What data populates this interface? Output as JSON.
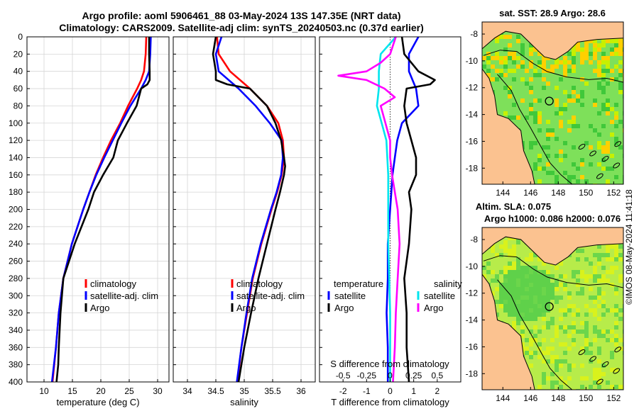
{
  "header": {
    "title_line1": "Argo profile: aoml 5906461_88 03-May-2024 13S 147.35E (NRT data)",
    "title_line2": "Climatology: CARS2009. Satellite-adj clim: synTS_20240503.nc (0.37d earlier)"
  },
  "footer": {
    "credit": "©IMOS 08-May-2024 11:41:18"
  },
  "colors": {
    "climatology": "#ff0000",
    "satellite_adj": "#0000ff",
    "argo": "#000000",
    "salinity_satellite": "#00e5ee",
    "salinity_argo": "#ff00ff"
  },
  "chart_data": [
    {
      "type": "line",
      "panel": "temperature",
      "xlabel": "temperature (deg C)",
      "ylabel": "",
      "xlim": [
        7,
        32
      ],
      "ylim": [
        400,
        0
      ],
      "xticks": [
        10,
        15,
        20,
        25,
        30
      ],
      "yticks": [
        0,
        20,
        40,
        60,
        80,
        100,
        120,
        140,
        160,
        180,
        200,
        220,
        240,
        260,
        280,
        300,
        320,
        340,
        360,
        380,
        400
      ],
      "grid": true,
      "legend": {
        "position": "bottom-right",
        "entries": [
          "climatology",
          "satellite-adj. clim",
          "Argo"
        ]
      },
      "series": [
        {
          "name": "climatology",
          "color": "#ff0000",
          "depth": [
            0,
            20,
            40,
            50,
            60,
            80,
            100,
            120,
            140,
            160,
            180,
            200,
            240,
            280,
            320,
            360,
            400
          ],
          "values": [
            28.0,
            27.9,
            27.6,
            27.1,
            26.4,
            24.8,
            23.4,
            21.8,
            20.4,
            19.1,
            18.0,
            16.9,
            14.9,
            13.4,
            12.6,
            12.1,
            11.5
          ]
        },
        {
          "name": "satellite-adj. clim",
          "color": "#0000ff",
          "depth": [
            0,
            20,
            40,
            50,
            60,
            80,
            100,
            120,
            140,
            160,
            180,
            200,
            240,
            280,
            320,
            360,
            400
          ],
          "values": [
            28.8,
            28.7,
            28.5,
            27.9,
            27.1,
            25.2,
            23.6,
            22.1,
            20.6,
            19.2,
            18.0,
            16.9,
            14.9,
            13.4,
            12.6,
            12.1,
            11.4
          ]
        },
        {
          "name": "Argo",
          "color": "#000000",
          "depth": [
            0,
            20,
            40,
            50,
            55,
            60,
            80,
            100,
            120,
            140,
            160,
            180,
            200,
            240,
            280,
            320,
            360,
            380,
            400
          ],
          "values": [
            28.5,
            28.5,
            28.6,
            28.6,
            28.2,
            27.1,
            26.3,
            24.6,
            23.0,
            22.2,
            20.4,
            18.8,
            17.8,
            15.4,
            13.4,
            12.9,
            12.6,
            12.5,
            12.2
          ]
        }
      ]
    },
    {
      "type": "line",
      "panel": "salinity",
      "xlabel": "salinity",
      "xlim": [
        33.75,
        36.25
      ],
      "ylim": [
        400,
        0
      ],
      "xticks": [
        34,
        34.5,
        35,
        35.5,
        36
      ],
      "grid": true,
      "legend": {
        "position": "bottom-right",
        "entries": [
          "climatology",
          "satellite-adj. clim",
          "Argo"
        ]
      },
      "series": [
        {
          "name": "climatology",
          "color": "#ff0000",
          "depth": [
            0,
            20,
            40,
            60,
            80,
            100,
            120,
            140,
            160,
            180,
            200,
            240,
            280,
            320,
            360,
            400
          ],
          "values": [
            34.52,
            34.55,
            34.75,
            35.1,
            35.4,
            35.6,
            35.68,
            35.7,
            35.66,
            35.58,
            35.48,
            35.3,
            35.15,
            35.05,
            34.95,
            34.88
          ]
        },
        {
          "name": "satellite-adj. clim",
          "color": "#0000ff",
          "depth": [
            0,
            20,
            40,
            60,
            80,
            100,
            120,
            140,
            160,
            180,
            200,
            240,
            280,
            320,
            360,
            400
          ],
          "values": [
            34.6,
            34.5,
            34.55,
            34.9,
            35.2,
            35.45,
            35.66,
            35.68,
            35.65,
            35.57,
            35.47,
            35.29,
            35.14,
            35.04,
            34.95,
            34.87
          ]
        },
        {
          "name": "Argo",
          "color": "#000000",
          "depth": [
            0,
            20,
            40,
            50,
            55,
            60,
            80,
            100,
            120,
            140,
            150,
            160,
            180,
            200,
            240,
            280,
            320,
            360,
            400
          ],
          "values": [
            34.5,
            34.45,
            34.5,
            34.5,
            34.7,
            35.1,
            35.4,
            35.55,
            35.65,
            35.7,
            35.72,
            35.7,
            35.63,
            35.55,
            35.4,
            35.25,
            35.12,
            35.0,
            34.9
          ]
        }
      ]
    },
    {
      "type": "line",
      "panel": "difference",
      "xlabel": "T difference from climatology",
      "xlabel_top": "S difference from climatology",
      "xlim": [
        -3,
        3
      ],
      "ylim": [
        400,
        0
      ],
      "xticks": [
        -2,
        -1,
        0,
        1,
        2
      ],
      "xticks_salinity": [
        -0.5,
        -0.25,
        0,
        0.25,
        0.5
      ],
      "xticklabels_salinity": [
        "-0.5",
        "-0.25",
        "0",
        "0.25",
        "0.5"
      ],
      "legend": {
        "position": "bottom",
        "temperature_title": "temperature",
        "salinity_title": "salinity",
        "entries": [
          "satellite",
          "Argo",
          "satellite",
          "Argo"
        ]
      },
      "series": [
        {
          "name": "temperature satellite",
          "color": "#0000ff",
          "depth": [
            0,
            20,
            40,
            60,
            80,
            100,
            120,
            140,
            160,
            180,
            200,
            240,
            280,
            320,
            360,
            400
          ],
          "values": [
            1.2,
            0.8,
            0.8,
            1.1,
            1.2,
            0.5,
            0.3,
            0.2,
            0.1,
            0.05,
            0.0,
            -0.1,
            -0.1,
            -0.15,
            -0.1,
            -0.1
          ]
        },
        {
          "name": "temperature Argo",
          "color": "#000000",
          "depth": [
            0,
            20,
            40,
            50,
            55,
            60,
            80,
            100,
            120,
            140,
            160,
            180,
            200,
            240,
            280,
            320,
            360,
            400
          ],
          "values": [
            0.5,
            0.6,
            1.2,
            1.9,
            1.7,
            0.7,
            0.6,
            0.7,
            0.9,
            1.1,
            1.1,
            0.8,
            0.9,
            0.8,
            0.6,
            0.7,
            0.7,
            0.8
          ]
        },
        {
          "name": "salinity satellite",
          "color": "#00e5ee",
          "depth": [
            0,
            20,
            40,
            60,
            80,
            100,
            120,
            140,
            160,
            180,
            200,
            240,
            280,
            320,
            360,
            400
          ],
          "values": [
            0.06,
            -0.1,
            -0.12,
            -0.12,
            -0.14,
            -0.09,
            -0.04,
            -0.03,
            -0.02,
            -0.02,
            -0.02,
            -0.02,
            -0.01,
            0.0,
            0.0,
            0.0
          ]
        },
        {
          "name": "salinity Argo",
          "color": "#ff00ff",
          "depth": [
            0,
            20,
            30,
            40,
            45,
            50,
            60,
            70,
            80,
            100,
            120,
            140,
            160,
            180,
            200,
            240,
            280,
            320,
            360,
            400
          ],
          "values": [
            0.06,
            0.0,
            -0.1,
            -0.25,
            -0.55,
            -0.25,
            -0.06,
            0.05,
            -0.1,
            -0.05,
            0.0,
            0.0,
            0.02,
            0.05,
            0.08,
            0.1,
            0.08,
            0.06,
            0.05,
            0.03
          ]
        }
      ]
    },
    {
      "type": "heatmap",
      "panel": "map-sst",
      "title": "sat. SST: 28.9 Argo: 28.6",
      "xticks": [
        144,
        146,
        148,
        150,
        152
      ],
      "yticks": [
        -8,
        -10,
        -12,
        -14,
        -16,
        -18
      ],
      "xlim": [
        142.5,
        152.7
      ],
      "ylim": [
        -19.2,
        -7.1
      ],
      "marker": {
        "lon": 147.35,
        "lat": -13.0
      }
    },
    {
      "type": "heatmap",
      "panel": "map-sla",
      "title_line1": "Altim. SLA: 0.075",
      "title_line2": "Argo h1000: 0.086 h2000: 0.076",
      "xticks": [
        144,
        146,
        148,
        150,
        152
      ],
      "yticks": [
        -8,
        -10,
        -12,
        -14,
        -16,
        -18
      ],
      "xlim": [
        142.5,
        152.7
      ],
      "ylim": [
        -19.2,
        -7.1
      ],
      "marker": {
        "lon": 147.35,
        "lat": -13.0
      }
    }
  ]
}
